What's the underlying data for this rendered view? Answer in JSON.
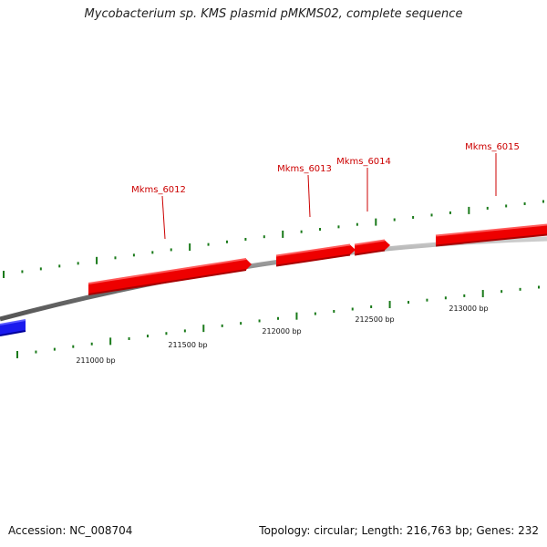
{
  "title": "Mycobacterium sp. KMS plasmid pMKMS02, complete sequence",
  "footer": {
    "accession": "Accession: NC_008704",
    "summary": "Topology: circular; Length: 216,763 bp; Genes: 232"
  },
  "colors": {
    "forward_gene": "#ee0000",
    "reverse_gene": "#1a1aee",
    "backbone": "#888888",
    "ticks": "#1a7a1a"
  },
  "genes": [
    {
      "name": "Mkms_6012",
      "strand": "forward"
    },
    {
      "name": "Mkms_6013",
      "strand": "forward"
    },
    {
      "name": "Mkms_6014",
      "strand": "forward"
    },
    {
      "name": "Mkms_6015",
      "strand": "forward"
    },
    {
      "name": "",
      "strand": "reverse"
    }
  ],
  "position_labels": [
    "211000 bp",
    "211500 bp",
    "212000 bp",
    "212500 bp",
    "213000 bp"
  ]
}
